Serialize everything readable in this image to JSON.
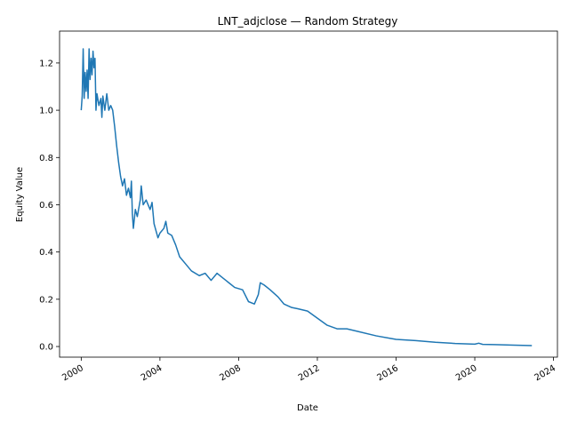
{
  "chart_data": {
    "type": "line",
    "title": "LNT_adjclose — Random Strategy",
    "xlabel": "Date",
    "ylabel": "Equity Value",
    "color": "#1f77b4",
    "x": [
      2000.0,
      2000.05,
      2000.1,
      2000.15,
      2000.2,
      2000.25,
      2000.3,
      2000.35,
      2000.4,
      2000.45,
      2000.5,
      2000.55,
      2000.6,
      2000.65,
      2000.7,
      2000.75,
      2000.8,
      2000.9,
      2001.0,
      2001.05,
      2001.1,
      2001.2,
      2001.3,
      2001.4,
      2001.5,
      2001.6,
      2001.7,
      2001.8,
      2001.9,
      2002.0,
      2002.1,
      2002.2,
      2002.3,
      2002.4,
      2002.5,
      2002.55,
      2002.6,
      2002.65,
      2002.75,
      2002.85,
      2003.0,
      2003.05,
      2003.15,
      2003.3,
      2003.5,
      2003.6,
      2003.7,
      2003.9,
      2004.0,
      2004.2,
      2004.3,
      2004.4,
      2004.6,
      2004.8,
      2005.0,
      2005.3,
      2005.6,
      2006.0,
      2006.3,
      2006.6,
      2006.9,
      2007.2,
      2007.5,
      2007.8,
      2008.2,
      2008.5,
      2008.8,
      2009.0,
      2009.1,
      2009.3,
      2009.6,
      2010.0,
      2010.3,
      2010.7,
      2011.0,
      2011.5,
      2012.0,
      2012.5,
      2013.0,
      2013.5,
      2014.0,
      2015.0,
      2016.0,
      2017.0,
      2018.0,
      2019.0,
      2020.0,
      2020.2,
      2020.4,
      2021.0,
      2022.0,
      2022.9
    ],
    "values": [
      1.0,
      1.06,
      1.26,
      1.05,
      1.16,
      1.08,
      1.17,
      1.05,
      1.26,
      1.13,
      1.22,
      1.15,
      1.25,
      1.18,
      1.22,
      1.0,
      1.07,
      1.02,
      1.05,
      0.97,
      1.06,
      1.0,
      1.07,
      1.0,
      1.02,
      1.0,
      0.93,
      0.85,
      0.78,
      0.72,
      0.68,
      0.71,
      0.64,
      0.67,
      0.63,
      0.7,
      0.56,
      0.5,
      0.58,
      0.55,
      0.62,
      0.68,
      0.6,
      0.62,
      0.58,
      0.61,
      0.52,
      0.46,
      0.48,
      0.5,
      0.53,
      0.48,
      0.47,
      0.43,
      0.38,
      0.35,
      0.32,
      0.3,
      0.31,
      0.28,
      0.31,
      0.29,
      0.27,
      0.25,
      0.24,
      0.19,
      0.18,
      0.22,
      0.27,
      0.26,
      0.24,
      0.21,
      0.18,
      0.165,
      0.16,
      0.15,
      0.12,
      0.09,
      0.075,
      0.075,
      0.065,
      0.045,
      0.03,
      0.025,
      0.018,
      0.013,
      0.01,
      0.014,
      0.009,
      0.008,
      0.006,
      0.004
    ],
    "xlim": [
      1998.9,
      2024.2
    ],
    "xticks": [
      2000,
      2004,
      2008,
      2012,
      2016,
      2020,
      2024
    ],
    "ylim": [
      -0.045,
      1.335
    ],
    "yticks": [
      {
        "value": 0,
        "label": "0.0"
      },
      0.2,
      0.4,
      0.6,
      0.8,
      {
        "value": 1,
        "label": "1.0"
      },
      1.2
    ]
  }
}
